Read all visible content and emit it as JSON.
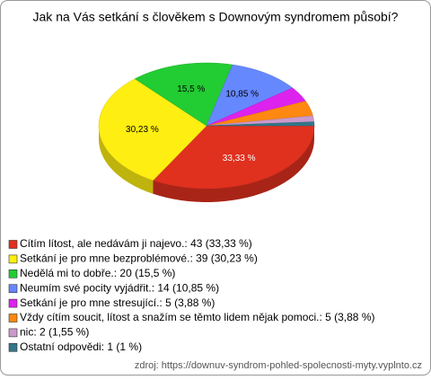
{
  "chart_data": {
    "type": "pie3d",
    "title": "Jak na Vás setkání s člověkem s Downovým syndromem působí?",
    "categories": [
      "Cítím lítost, ale nedávám ji najevo.: 43 (33,33 %)",
      "Setkání je pro mne bezproblémové.: 39 (30,23 %)",
      "Nedělá mi to dobře.: 20 (15,5 %)",
      "Neumím své pocity vyjádřit.: 14 (10,85 %)",
      "Setkání je pro mne stresující.: 5 (3,88 %)",
      "Vždy cítím soucit, lítost a snažím se těmto lidem nějak pomoci.: 5 (3,88 %)",
      "nic: 2 (1,55 %)",
      "Ostatní odpovědi: 1 (1 %)"
    ],
    "values": [
      33.33,
      30.23,
      15.5,
      10.85,
      3.88,
      3.88,
      1.55,
      1
    ],
    "value_labels": [
      "33,33 %",
      "30,23 %",
      "15,5 %",
      "10,85 %",
      null,
      null,
      null,
      null
    ],
    "colors": [
      "#e0301e",
      "#ffee11",
      "#22cc33",
      "#6688ff",
      "#dd22ee",
      "#ff8811",
      "#cc99cc",
      "#337788"
    ],
    "source": "zdroj: https://downuv-syndrom-pohled-spolecnosti-myty.vyplnto.cz"
  }
}
